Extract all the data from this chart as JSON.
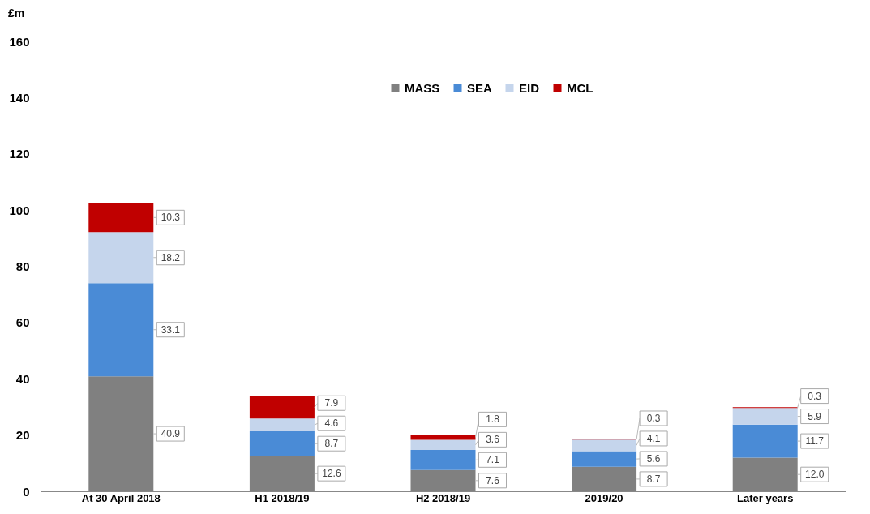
{
  "chart_data": {
    "type": "bar",
    "stacked": true,
    "ylabel": "£m",
    "categories": [
      "At 30 April 2018",
      "H1 2018/19",
      "H2 2018/19",
      "2019/20",
      "Later years"
    ],
    "ylim": [
      0,
      160
    ],
    "yticks": [
      0,
      20,
      40,
      60,
      80,
      100,
      120,
      140,
      160
    ],
    "legend": "top",
    "series": [
      {
        "name": "MASS",
        "color": "#808080",
        "values": [
          40.9,
          12.6,
          7.6,
          8.7,
          12.0
        ],
        "value_labels": [
          "40.9",
          "12.6",
          "7.6",
          "8.7",
          "12.0"
        ]
      },
      {
        "name": "SEA",
        "color": "#4a8bd6",
        "values": [
          33.1,
          8.7,
          7.1,
          5.6,
          11.7
        ],
        "value_labels": [
          "33.1",
          "8.7",
          "7.1",
          "5.6",
          "11.7"
        ]
      },
      {
        "name": "EID",
        "color": "#c5d5ec",
        "values": [
          18.2,
          4.6,
          3.6,
          4.1,
          5.9
        ],
        "value_labels": [
          "18.2",
          "4.6",
          "3.6",
          "4.1",
          "5.9"
        ]
      },
      {
        "name": "MCL",
        "color": "#c00000",
        "values": [
          10.3,
          7.9,
          1.8,
          0.3,
          0.3
        ],
        "value_labels": [
          "10.3",
          "7.9",
          "1.8",
          "0.3",
          "0.3"
        ]
      }
    ]
  }
}
